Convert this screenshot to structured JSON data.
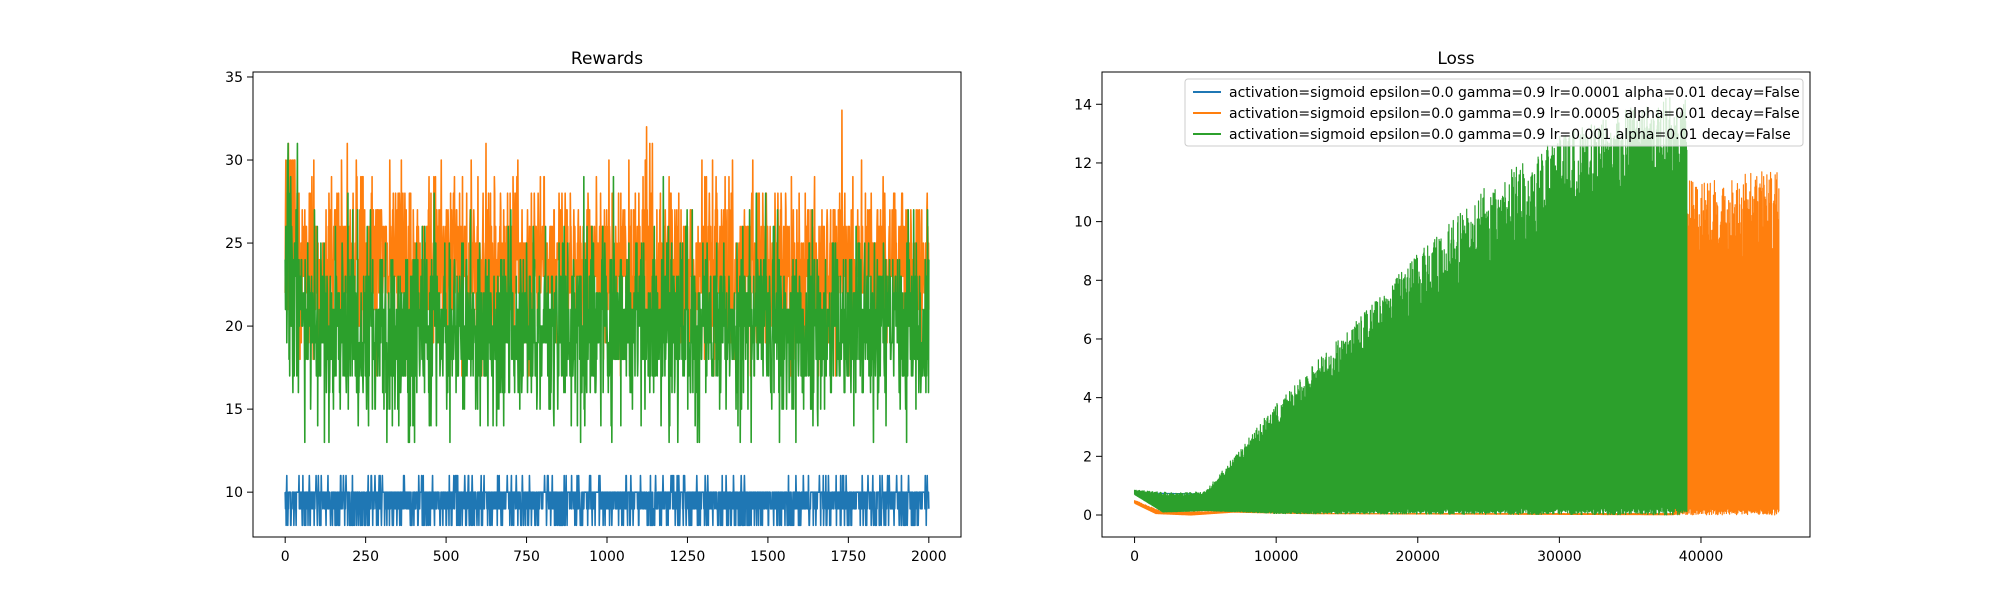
{
  "chart_data": [
    {
      "type": "line",
      "title": "Rewards",
      "xlabel": "",
      "ylabel": "",
      "xlim": [
        -100,
        2100
      ],
      "ylim": [
        7.3,
        35.3
      ],
      "xticks": [
        0,
        250,
        500,
        750,
        1000,
        1250,
        1500,
        1750,
        2000
      ],
      "yticks": [
        10,
        15,
        20,
        25,
        30,
        35
      ],
      "grid": false,
      "legend": "none",
      "n_points": 2001,
      "series": [
        {
          "color": "#1f77b4",
          "pattern": "discrete",
          "levels": [
            8,
            9,
            10,
            11
          ],
          "weights": [
            0.15,
            0.25,
            0.55,
            0.05
          ],
          "min": 8,
          "max": 11
        },
        {
          "color": "#ff7f0e",
          "pattern": "noisy",
          "mean": 23.5,
          "sd": 2.6,
          "min": 17,
          "max": 34,
          "start_min": 20,
          "start_max": 31,
          "jitter": 1.0
        },
        {
          "color": "#2ca02c",
          "pattern": "noisy",
          "mean": 20.0,
          "sd": 2.8,
          "min": 13,
          "max": 32,
          "start_min": 16,
          "start_max": 31,
          "jitter": 1.0
        }
      ]
    },
    {
      "type": "line",
      "title": "Loss",
      "xlabel": "",
      "ylabel": "",
      "xlim": [
        -2300,
        47700
      ],
      "ylim": [
        -0.75,
        15.1
      ],
      "xticks": [
        0,
        10000,
        20000,
        30000,
        40000
      ],
      "yticks": [
        0,
        2,
        4,
        6,
        8,
        10,
        12,
        14
      ],
      "grid": false,
      "legend": "upper right",
      "series": [
        {
          "name": "activation=sigmoid epsilon=0.0 gamma=0.9 lr=0.0001 alpha=0.01 decay=False",
          "color": "#1f77b4",
          "length": 4500,
          "base_points": [
            [
              0,
              0.75
            ],
            [
              4500,
              0.72
            ]
          ],
          "envelope_points": [
            [
              0,
              0.75
            ],
            [
              4500,
              0.72
            ]
          ]
        },
        {
          "name": "activation=sigmoid epsilon=0.0 gamma=0.9 lr=0.0005 alpha=0.01 decay=False",
          "color": "#ff7f0e",
          "length": 45500,
          "base_points": [
            [
              0,
              0.4
            ],
            [
              1500,
              0.05
            ],
            [
              4000,
              0.0
            ],
            [
              7000,
              0.1
            ],
            [
              12000,
              0.05
            ],
            [
              45500,
              0.0
            ]
          ],
          "envelope_points": [
            [
              0,
              0.5
            ],
            [
              2000,
              0.1
            ],
            [
              6000,
              0.12
            ],
            [
              14000,
              0.05
            ],
            [
              38000,
              0.05
            ],
            [
              39000,
              11.4
            ],
            [
              45500,
              11.8
            ]
          ]
        },
        {
          "name": "activation=sigmoid epsilon=0.0 gamma=0.9 lr=0.001 alpha=0.01 decay=False",
          "color": "#2ca02c",
          "length": 39000,
          "base_points": [
            [
              0,
              0.7
            ],
            [
              2000,
              0.1
            ],
            [
              5000,
              0.15
            ],
            [
              10000,
              0.05
            ],
            [
              39000,
              0.0
            ]
          ],
          "envelope_points": [
            [
              0,
              0.85
            ],
            [
              3000,
              0.75
            ],
            [
              5000,
              0.8
            ],
            [
              10000,
              3.8
            ],
            [
              15000,
              6.3
            ],
            [
              20000,
              8.9
            ],
            [
              25000,
              11.3
            ],
            [
              30000,
              12.9
            ],
            [
              35000,
              13.9
            ],
            [
              39000,
              14.4
            ]
          ]
        }
      ]
    }
  ]
}
